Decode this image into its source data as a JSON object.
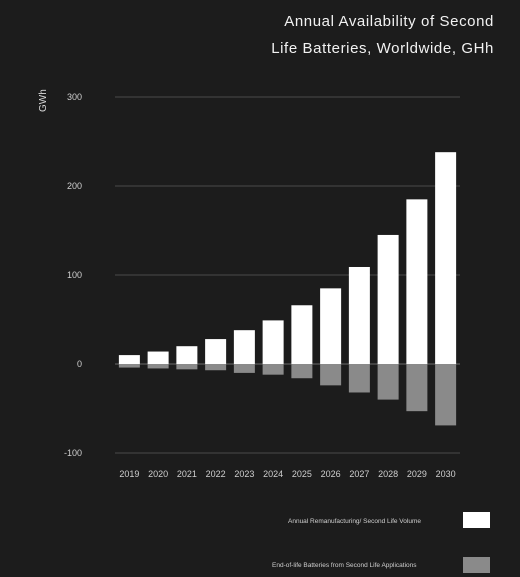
{
  "chart_data": {
    "type": "bar",
    "title_lines": [
      "Annual Availability of Second",
      "Life Batteries, Worldwide, GHh"
    ],
    "ylabel": "GWh",
    "xlabel": "",
    "ylim": [
      -100,
      300
    ],
    "yticks": [
      300,
      200,
      100,
      0,
      -100
    ],
    "categories": [
      "2019",
      "2020",
      "2021",
      "2022",
      "2023",
      "2024",
      "2025",
      "2026",
      "2027",
      "2028",
      "2029",
      "2030"
    ],
    "stacked": "diverging",
    "grid": true,
    "legend_position": "bottom-right",
    "series": [
      {
        "name": "Annual Remanufacturing/ Second Life Volume",
        "color": "#ffffff",
        "values": [
          10,
          14,
          20,
          28,
          38,
          49,
          66,
          85,
          109,
          145,
          185,
          238
        ]
      },
      {
        "name": "End-of-life Batteries from Second Life Applications",
        "color": "#8a8a8a",
        "values": [
          -4,
          -5,
          -6,
          -7,
          -10,
          -12,
          -16,
          -24,
          -32,
          -40,
          -53,
          -69
        ]
      }
    ]
  }
}
